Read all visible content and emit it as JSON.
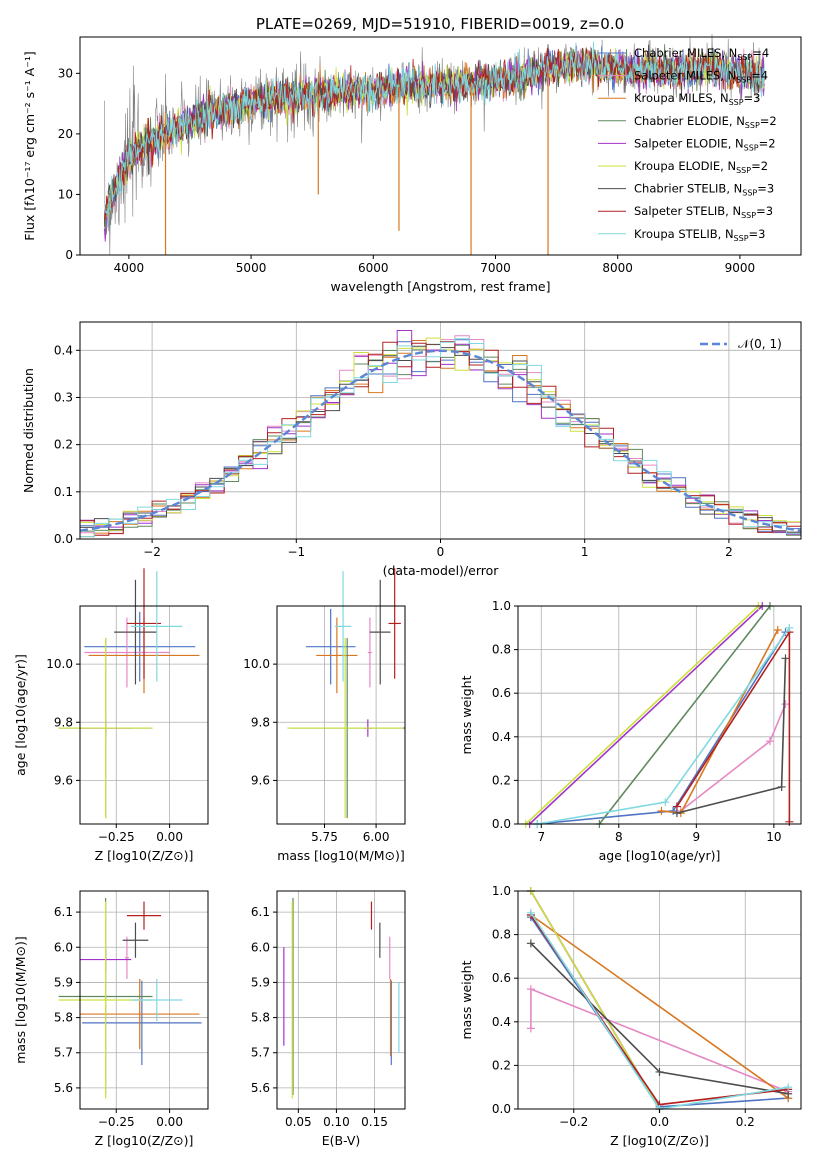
{
  "figure": {
    "title": "PLATE=0269, MJD=51910, FIBERID=0019, z=0.0"
  },
  "colors": {
    "Chabrier MILES": "#4f74c4",
    "Salpeter MILES": "#e589c4",
    "Kroupa MILES": "#d8771f",
    "Chabrier ELODIE": "#5f8a5f",
    "Salpeter ELODIE": "#a233c9",
    "Kroupa ELODIE": "#cde03e",
    "Chabrier STELIB": "#4d4d4d",
    "Salpeter STELIB": "#b22020",
    "Kroupa STELIB": "#7fd9e0"
  },
  "chart_data": [
    {
      "id": "spectrum",
      "type": "line",
      "title": "PLATE=0269, MJD=51910, FIBERID=0019, z=0.0",
      "xlabel": "wavelength [Angstrom, rest frame]",
      "ylabel": "Flux [fλ10⁻¹⁷ erg cm⁻² s⁻¹ A⁻¹]",
      "xlim": [
        3600,
        9500
      ],
      "ylim": [
        0,
        36
      ],
      "xticks": [
        "4000",
        "5000",
        "6000",
        "7000",
        "8000",
        "9000"
      ],
      "yticks": [
        "0",
        "10",
        "20",
        "30"
      ],
      "grid": false,
      "legend_position": "top-right",
      "legend": [
        "Chabrier MILES, N_SSP=4",
        "Salpeter MILES, N_SSP=4",
        "Kroupa MILES, N_SSP=3",
        "Chabrier ELODIE, N_SSP=2",
        "Salpeter ELODIE, N_SSP=2",
        "Kroupa ELODIE, N_SSP=2",
        "Chabrier STELIB, N_SSP=3",
        "Salpeter STELIB, N_SSP=3",
        "Kroupa STELIB, N_SSP=3"
      ],
      "continuum": {
        "x": [
          3800,
          3850,
          3900,
          3950,
          4000,
          4100,
          4200,
          4300,
          4400,
          4500,
          4700,
          4900,
          5100,
          5300,
          5500,
          5700,
          5900,
          6100,
          6300,
          6500,
          6700,
          6900,
          7100,
          7300,
          7500,
          7700,
          7900,
          8100,
          8300,
          8500,
          8700,
          8900,
          9100,
          9200
        ],
        "y": [
          6,
          9,
          11,
          14,
          16,
          18,
          19,
          20,
          21,
          22,
          23.5,
          24.5,
          25.5,
          26,
          26.5,
          27,
          27,
          27.5,
          28,
          28,
          28,
          28.5,
          29,
          30,
          31,
          31.5,
          31,
          30.5,
          31,
          30,
          31,
          30.5,
          30,
          29
        ]
      },
      "absorption_spikes": [
        {
          "x": 4300,
          "y": 0
        },
        {
          "x": 5550,
          "y": 10
        },
        {
          "x": 6210,
          "y": 4
        },
        {
          "x": 6800,
          "y": 0
        },
        {
          "x": 7430,
          "y": 0
        }
      ]
    },
    {
      "id": "residuals",
      "type": "line",
      "xlabel": "(data-model)/error",
      "ylabel": "Normed distribution",
      "xlim": [
        -2.5,
        2.5
      ],
      "ylim": [
        0,
        0.46
      ],
      "xticks": [
        "−2",
        "−1",
        "0",
        "1",
        "2"
      ],
      "yticks": [
        "0.0",
        "0.1",
        "0.2",
        "0.3",
        "0.4"
      ],
      "grid": true,
      "legend_position": "top-right",
      "legend": [
        "𝒩(0, 1)"
      ],
      "bin_width": 0.1,
      "bin_start": -2.5,
      "reference_curve": "normal(0,1)"
    },
    {
      "id": "age-vs-Z",
      "type": "scatter",
      "xlabel": "Z [log10(Z/Z⊙)]",
      "ylabel": "age  [log10(age/yr)]",
      "xlim": [
        -0.42,
        0.18
      ],
      "ylim": [
        9.45,
        10.2
      ],
      "xticks": [
        "−0.25",
        "0.00"
      ],
      "yticks": [
        "9.6",
        "9.8",
        "10.0"
      ],
      "grid": true,
      "points": [
        {
          "model": "Chabrier MILES",
          "x": -0.14,
          "xerr": 0.26,
          "y": 10.06,
          "yerr": 0.12
        },
        {
          "model": "Salpeter MILES",
          "x": -0.2,
          "xerr": 0.2,
          "y": 10.04,
          "yerr": 0.12
        },
        {
          "model": "Kroupa MILES",
          "x": -0.12,
          "xerr": 0.26,
          "y": 10.03,
          "yerr": 0.13
        },
        {
          "model": "Chabrier ELODIE",
          "x": -0.3,
          "xerr": 0.22,
          "y": 9.78,
          "yerr": 0.31
        },
        {
          "model": "Salpeter ELODIE",
          "x": -0.3,
          "xerr": 0.12,
          "y": 9.78,
          "yerr": 0.03
        },
        {
          "model": "Kroupa ELODIE",
          "x": -0.3,
          "xerr": 0.22,
          "y": 9.78,
          "yerr": 0.31
        },
        {
          "model": "Chabrier STELIB",
          "x": -0.16,
          "xerr": 0.1,
          "y": 10.11,
          "yerr": 0.18
        },
        {
          "model": "Salpeter STELIB",
          "x": -0.12,
          "xerr": 0.08,
          "y": 10.14,
          "yerr": 0.19
        },
        {
          "model": "Kroupa STELIB",
          "x": -0.06,
          "xerr": 0.12,
          "y": 10.13,
          "yerr": 0.19
        }
      ]
    },
    {
      "id": "age-vs-mass",
      "type": "scatter",
      "xlabel": "mass [log10(M/M⊙)]",
      "ylabel": "",
      "xlim": [
        5.52,
        6.14
      ],
      "ylim": [
        9.45,
        10.2
      ],
      "xticks": [
        "5.75",
        "6.00"
      ],
      "yticks": [
        "9.6",
        "9.8",
        "10.0"
      ],
      "grid": true,
      "points": [
        {
          "model": "Chabrier MILES",
          "x": 5.78,
          "xerr": 0.12,
          "y": 10.06,
          "yerr": 0.13
        },
        {
          "model": "Salpeter MILES",
          "x": 5.97,
          "xerr": 0.01,
          "y": 10.04,
          "yerr": 0.12
        },
        {
          "model": "Kroupa MILES",
          "x": 5.81,
          "xerr": 0.1,
          "y": 10.03,
          "yerr": 0.13
        },
        {
          "model": "Chabrier ELODIE",
          "x": 5.86,
          "xerr": 0.28,
          "y": 9.78,
          "yerr": 0.31
        },
        {
          "model": "Salpeter ELODIE",
          "x": 5.96,
          "xerr": 0.02,
          "y": 9.78,
          "yerr": 0.03
        },
        {
          "model": "Kroupa ELODIE",
          "x": 5.85,
          "xerr": 0.28,
          "y": 9.78,
          "yerr": 0.31
        },
        {
          "model": "Chabrier STELIB",
          "x": 6.02,
          "xerr": 0.05,
          "y": 10.11,
          "yerr": 0.18
        },
        {
          "model": "Salpeter STELIB",
          "x": 6.09,
          "xerr": 0.03,
          "y": 10.14,
          "yerr": 0.19
        },
        {
          "model": "Kroupa STELIB",
          "x": 5.84,
          "xerr": 0.04,
          "y": 10.13,
          "yerr": 0.19
        }
      ]
    },
    {
      "id": "mass-weight-vs-age",
      "type": "line",
      "xlabel": "age  [log10(age/yr)]",
      "ylabel": "mass weight",
      "xlim": [
        6.7,
        10.35
      ],
      "ylim": [
        0,
        1
      ],
      "xticks": [
        "7",
        "8",
        "9",
        "10"
      ],
      "yticks": [
        "0.0",
        "0.2",
        "0.4",
        "0.6",
        "0.8",
        "1.0"
      ],
      "grid": true,
      "series": [
        {
          "name": "Chabrier MILES",
          "x": [
            6.95,
            8.7,
            10.15
          ],
          "y": [
            0,
            0.06,
            0.88
          ]
        },
        {
          "name": "Salpeter MILES",
          "x": [
            8.8,
            9.95,
            10.15
          ],
          "y": [
            0.06,
            0.38,
            0.55
          ]
        },
        {
          "name": "Kroupa MILES",
          "x": [
            8.55,
            8.8,
            10.05
          ],
          "y": [
            0.06,
            0.05,
            0.89
          ]
        },
        {
          "name": "Chabrier ELODIE",
          "x": [
            7.75,
            9.95
          ],
          "y": [
            0,
            1
          ]
        },
        {
          "name": "Salpeter ELODIE",
          "x": [
            6.85,
            9.85
          ],
          "y": [
            0,
            1
          ]
        },
        {
          "name": "Kroupa ELODIE",
          "x": [
            6.8,
            9.8
          ],
          "y": [
            0,
            1
          ]
        },
        {
          "name": "Chabrier STELIB",
          "x": [
            8.75,
            10.1,
            10.15
          ],
          "y": [
            0.05,
            0.17,
            0.76
          ]
        },
        {
          "name": "Salpeter STELIB",
          "x": [
            8.75,
            10.2,
            10.2
          ],
          "y": [
            0.08,
            0.88,
            0.01
          ]
        },
        {
          "name": "Kroupa STELIB",
          "x": [
            6.95,
            8.6,
            10.2
          ],
          "y": [
            0,
            0.1,
            0.9
          ]
        }
      ]
    },
    {
      "id": "mass-vs-Z",
      "type": "scatter",
      "xlabel": "Z [log10(Z/Z⊙)]",
      "ylabel": "mass [log10(M/M⊙)]",
      "xlim": [
        -0.42,
        0.18
      ],
      "ylim": [
        5.54,
        6.16
      ],
      "xticks": [
        "−0.25",
        "0.00"
      ],
      "yticks": [
        "5.6",
        "5.7",
        "5.8",
        "5.9",
        "6.0",
        "6.1"
      ],
      "grid": true,
      "points": [
        {
          "model": "Chabrier MILES",
          "x": -0.13,
          "xerr": 0.28,
          "y": 5.785,
          "yerr": 0.12
        },
        {
          "model": "Salpeter MILES",
          "x": -0.2,
          "xerr": 0.01,
          "y": 5.97,
          "yerr": 0.06
        },
        {
          "model": "Kroupa MILES",
          "x": -0.14,
          "xerr": 0.28,
          "y": 5.81,
          "yerr": 0.1
        },
        {
          "model": "Chabrier ELODIE",
          "x": -0.3,
          "xerr": 0.22,
          "y": 5.86,
          "yerr": 0.28
        },
        {
          "model": "Salpeter ELODIE",
          "x": -0.3,
          "xerr": 0.12,
          "y": 5.965,
          "yerr": 0.03
        },
        {
          "model": "Kroupa ELODIE",
          "x": -0.3,
          "xerr": 0.22,
          "y": 5.85,
          "yerr": 0.28
        },
        {
          "model": "Chabrier STELIB",
          "x": -0.16,
          "xerr": 0.06,
          "y": 6.02,
          "yerr": 0.05
        },
        {
          "model": "Salpeter STELIB",
          "x": -0.12,
          "xerr": 0.08,
          "y": 6.09,
          "yerr": 0.04
        },
        {
          "model": "Kroupa STELIB",
          "x": -0.06,
          "xerr": 0.12,
          "y": 5.85,
          "yerr": 0.06
        }
      ]
    },
    {
      "id": "mass-vs-EBV",
      "type": "scatter",
      "xlabel": "E(B-V)",
      "ylabel": "",
      "xlim": [
        0.022,
        0.19
      ],
      "ylim": [
        5.54,
        6.16
      ],
      "xticks": [
        "0.05",
        "0.10",
        "0.15"
      ],
      "yticks": [
        "5.6",
        "5.7",
        "5.8",
        "5.9",
        "6.0",
        "6.1"
      ],
      "grid": true,
      "points": [
        {
          "model": "Chabrier MILES",
          "x": 0.172,
          "y": 5.785,
          "yerr": 0.12
        },
        {
          "model": "Salpeter MILES",
          "x": 0.17,
          "y": 5.97,
          "yerr": 0.06
        },
        {
          "model": "Kroupa MILES",
          "x": 0.171,
          "y": 5.8,
          "yerr": 0.11
        },
        {
          "model": "Chabrier ELODIE",
          "x": 0.043,
          "y": 5.86,
          "yerr": 0.28
        },
        {
          "model": "Salpeter ELODIE",
          "x": 0.031,
          "y": 5.86,
          "yerr": 0.14
        },
        {
          "model": "Kroupa ELODIE",
          "x": 0.042,
          "y": 5.85,
          "yerr": 0.28
        },
        {
          "model": "Chabrier STELIB",
          "x": 0.157,
          "y": 6.02,
          "yerr": 0.05
        },
        {
          "model": "Salpeter STELIB",
          "x": 0.146,
          "y": 6.09,
          "yerr": 0.04
        },
        {
          "model": "Kroupa STELIB",
          "x": 0.182,
          "y": 5.8,
          "yerr": 0.1
        }
      ]
    },
    {
      "id": "mass-weight-vs-Z",
      "type": "line",
      "xlabel": "Z [log10(Z/Z⊙)]",
      "ylabel": "mass weight",
      "xlim": [
        -0.33,
        0.33
      ],
      "ylim": [
        0,
        1
      ],
      "xticks": [
        "−0.2",
        "0.0",
        "0.2"
      ],
      "yticks": [
        "0.0",
        "0.2",
        "0.4",
        "0.6",
        "0.8",
        "1.0"
      ],
      "grid": true,
      "series": [
        {
          "name": "Chabrier MILES",
          "x": [
            -0.3,
            0,
            0.3
          ],
          "y": [
            0.88,
            0.01,
            0.05
          ]
        },
        {
          "name": "Salpeter MILES",
          "x": [
            -0.3,
            -0.3,
            0.3
          ],
          "y": [
            0.37,
            0.55,
            0.08
          ]
        },
        {
          "name": "Kroupa MILES",
          "x": [
            -0.3,
            0.3
          ],
          "y": [
            0.89,
            0.05
          ]
        },
        {
          "name": "Chabrier ELODIE",
          "x": [
            -0.3,
            0
          ],
          "y": [
            1,
            0
          ]
        },
        {
          "name": "Salpeter ELODIE",
          "x": [
            -0.3,
            0
          ],
          "y": [
            1,
            0
          ]
        },
        {
          "name": "Kroupa ELODIE",
          "x": [
            -0.3,
            0
          ],
          "y": [
            1,
            0
          ]
        },
        {
          "name": "Chabrier STELIB",
          "x": [
            -0.3,
            0,
            0.3
          ],
          "y": [
            0.76,
            0.17,
            0.07
          ]
        },
        {
          "name": "Salpeter STELIB",
          "x": [
            -0.3,
            0,
            0.3
          ],
          "y": [
            0.89,
            0.02,
            0.09
          ]
        },
        {
          "name": "Kroupa STELIB",
          "x": [
            -0.3,
            0,
            0.3
          ],
          "y": [
            0.9,
            0.0,
            0.1
          ]
        }
      ]
    }
  ]
}
